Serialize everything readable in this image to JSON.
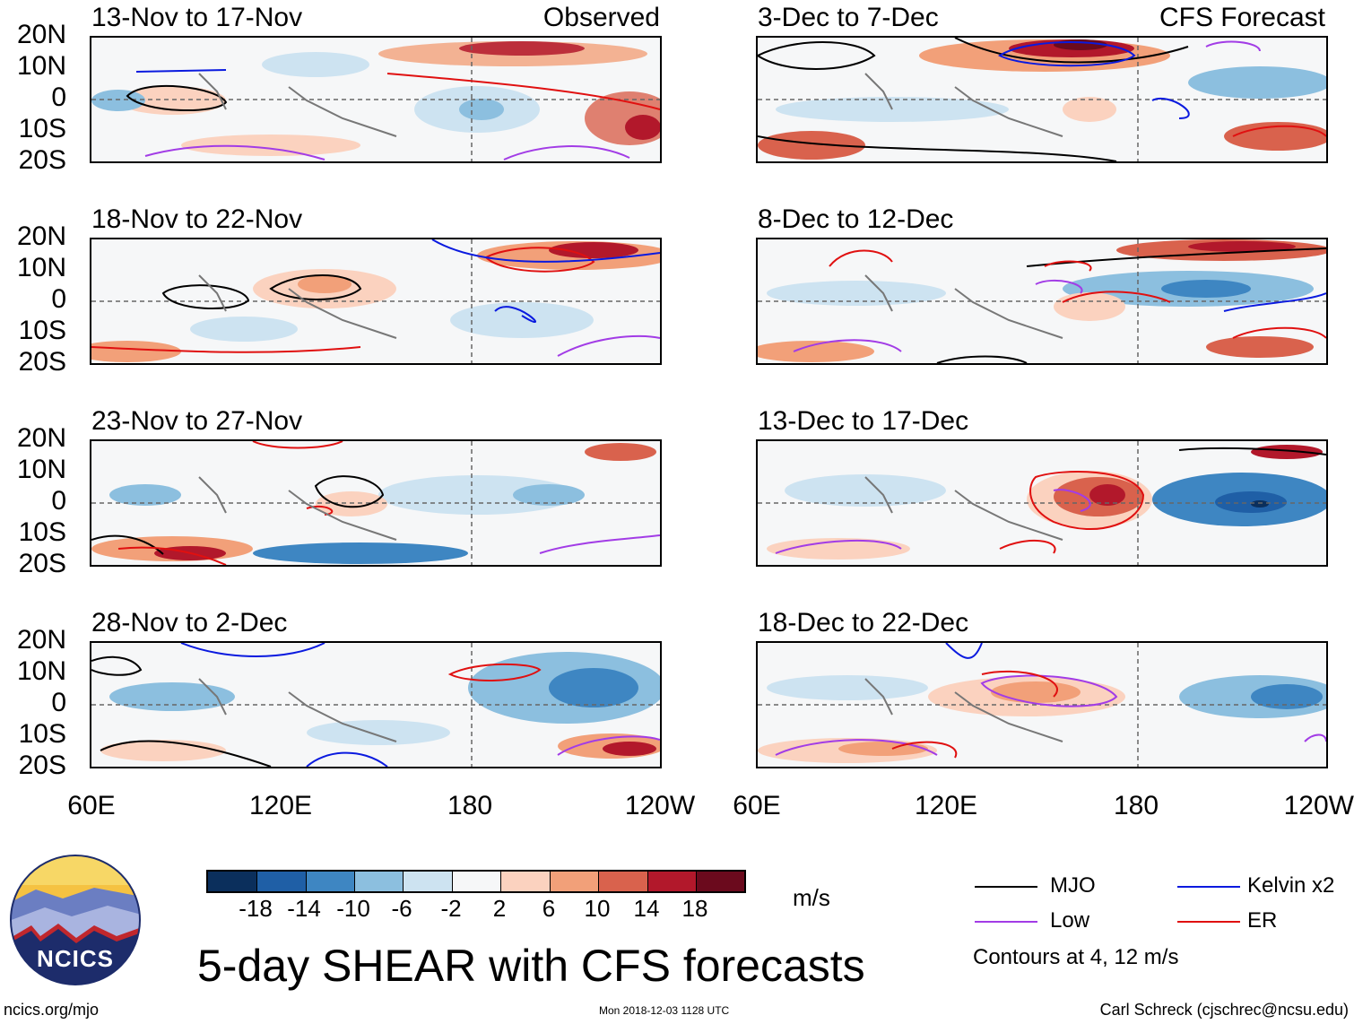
{
  "panels_left": [
    {
      "title": "13-Nov to 17-Nov",
      "label": "Observed"
    },
    {
      "title": "18-Nov to 22-Nov",
      "label": ""
    },
    {
      "title": "23-Nov to 27-Nov",
      "label": ""
    },
    {
      "title": "28-Nov to 2-Dec",
      "label": ""
    }
  ],
  "panels_right": [
    {
      "title": "3-Dec to 7-Dec",
      "label": "CFS Forecast"
    },
    {
      "title": "8-Dec to 12-Dec",
      "label": ""
    },
    {
      "title": "13-Dec to 17-Dec",
      "label": ""
    },
    {
      "title": "18-Dec to 22-Dec",
      "label": ""
    }
  ],
  "lat_labels": [
    "20N",
    "10N",
    "0",
    "10S",
    "20S"
  ],
  "lon_labels": [
    "60E",
    "120E",
    "180",
    "120W"
  ],
  "colorbar": {
    "ticks": [
      "-18",
      "-14",
      "-10",
      "-6",
      "-2",
      "2",
      "6",
      "10",
      "14",
      "18"
    ],
    "colors": [
      "#0b2f5c",
      "#1f5fa6",
      "#3e86c2",
      "#8cbfdf",
      "#cde3f1",
      "#f6f7f8",
      "#fbd2bf",
      "#f2a079",
      "#d9624d",
      "#b2182b",
      "#6b0a1d"
    ],
    "units": "m/s"
  },
  "legend": {
    "items": [
      {
        "label": "MJO",
        "color": "#000000"
      },
      {
        "label": "Kelvin x2",
        "color": "#0a1adf"
      },
      {
        "label": "Low",
        "color": "#a23ce6"
      },
      {
        "label": "ER",
        "color": "#e01010"
      }
    ],
    "note": "Contours at 4, 12 m/s"
  },
  "title": "5-day SHEAR with CFS forecasts",
  "logo_text": "NCICS",
  "footer": {
    "url": "ncics.org/mjo",
    "timestamp": "Mon 2018-12-03 1128 UTC",
    "credit": "Carl Schreck (cjschrec@ncsu.edu)"
  }
}
